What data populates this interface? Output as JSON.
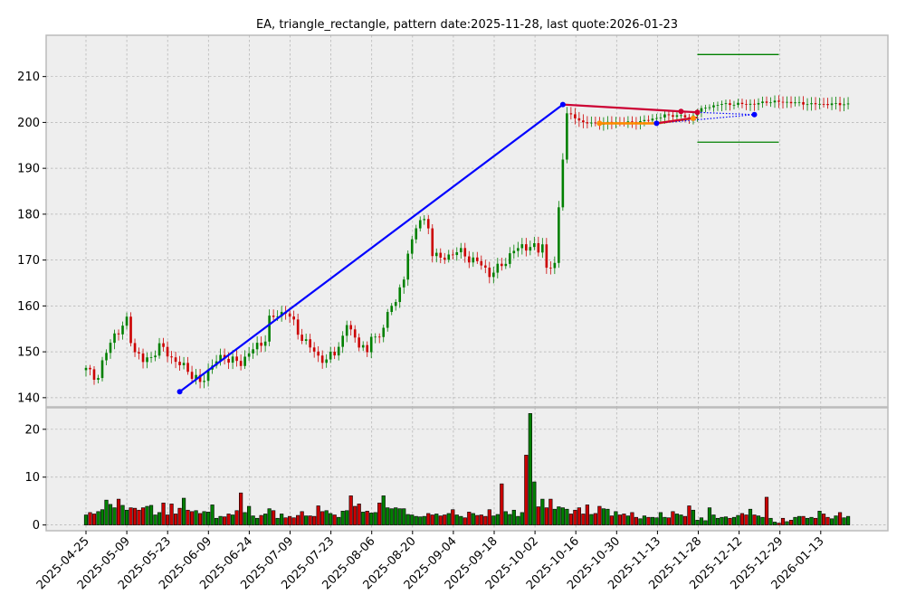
{
  "chart_data": {
    "type": "candlestick",
    "title": "EA, triangle_rectangle, pattern date:2025-11-28, last quote:2026-01-23",
    "xlabel": "",
    "ylabel": "",
    "price_axis": {
      "ylim": [
        138,
        219
      ],
      "ticks": [
        140,
        150,
        160,
        170,
        180,
        190,
        200,
        210
      ]
    },
    "volume_axis": {
      "ylim": [
        -1.2,
        24.5
      ],
      "ticks": [
        0,
        10,
        20
      ],
      "unit": "millions"
    },
    "date_ticks": [
      "2025-04-25",
      "2025-05-09",
      "2025-05-23",
      "2025-06-09",
      "2025-06-24",
      "2025-07-09",
      "2025-07-23",
      "2025-08-06",
      "2025-08-20",
      "2025-09-04",
      "2025-09-18",
      "2025-10-02",
      "2025-10-16",
      "2025-10-30",
      "2025-11-13",
      "2025-11-28",
      "2025-12-12",
      "2025-12-29",
      "2026-01-13"
    ],
    "grid": true,
    "colors": {
      "up": "#008000",
      "down": "#cc0000",
      "background": "#eeeeee",
      "wedge": "#0000ff",
      "resistance": "#cc0033",
      "support": "#ff8c00",
      "target": "#008000"
    },
    "price_anchors": [
      [
        0,
        146
      ],
      [
        3,
        144.5
      ],
      [
        5,
        150
      ],
      [
        7,
        154
      ],
      [
        9,
        155
      ],
      [
        10,
        157
      ],
      [
        11,
        153
      ],
      [
        12,
        150
      ],
      [
        14,
        148
      ],
      [
        16,
        149
      ],
      [
        18,
        151
      ],
      [
        20,
        150
      ],
      [
        22,
        147.5
      ],
      [
        24,
        147
      ],
      [
        26,
        145
      ],
      [
        28,
        143
      ],
      [
        30,
        146
      ],
      [
        32,
        148
      ],
      [
        34,
        149
      ],
      [
        36,
        148
      ],
      [
        38,
        147.5
      ],
      [
        40,
        150
      ],
      [
        42,
        151
      ],
      [
        44,
        153
      ],
      [
        45,
        157
      ],
      [
        47,
        158
      ],
      [
        49,
        159
      ],
      [
        51,
        156
      ],
      [
        53,
        153
      ],
      [
        55,
        151
      ],
      [
        57,
        149
      ],
      [
        59,
        148
      ],
      [
        61,
        150
      ],
      [
        63,
        153
      ],
      [
        64,
        156
      ],
      [
        66,
        153
      ],
      [
        68,
        151
      ],
      [
        69,
        149
      ],
      [
        70,
        154
      ],
      [
        72,
        153
      ],
      [
        74,
        158
      ],
      [
        76,
        162
      ],
      [
        78,
        165
      ],
      [
        79,
        172
      ],
      [
        81,
        177
      ],
      [
        82,
        179
      ],
      [
        84,
        177
      ],
      [
        85,
        172
      ],
      [
        87,
        170
      ],
      [
        89,
        171
      ],
      [
        91,
        172
      ],
      [
        93,
        171
      ],
      [
        95,
        170
      ],
      [
        97,
        169
      ],
      [
        99,
        167
      ],
      [
        101,
        168
      ],
      [
        103,
        170
      ],
      [
        105,
        172
      ],
      [
        107,
        173
      ],
      [
        109,
        173
      ],
      [
        111,
        172
      ],
      [
        112,
        174
      ],
      [
        113,
        168
      ],
      [
        115,
        169
      ],
      [
        117,
        193
      ],
      [
        118,
        202
      ],
      [
        120,
        201
      ],
      [
        122,
        200
      ],
      [
        124,
        199.8
      ],
      [
        126,
        199.8
      ],
      [
        130,
        200
      ],
      [
        134,
        200
      ],
      [
        138,
        200.5
      ],
      [
        142,
        201.5
      ],
      [
        146,
        201.5
      ],
      [
        148,
        200.8
      ],
      [
        150,
        202.5
      ],
      [
        153,
        203.5
      ],
      [
        156,
        204
      ],
      [
        160,
        204
      ],
      [
        164,
        204
      ],
      [
        167,
        204.5
      ],
      [
        171,
        204.5
      ],
      [
        175,
        204.2
      ],
      [
        178,
        204
      ]
    ],
    "volume": [
      2.1,
      2.6,
      2.3,
      2.8,
      3.2,
      5.2,
      4.3,
      3.6,
      5.4,
      4.1,
      3.1,
      3.6,
      3.5,
      3.1,
      3.6,
      3.9,
      4.1,
      2.1,
      2.6,
      4.6,
      2.1,
      4.4,
      2.3,
      3.5,
      5.6,
      3.1,
      2.8,
      3.0,
      2.4,
      2.8,
      2.7,
      4.2,
      1.4,
      1.8,
      1.7,
      2.3,
      2.1,
      3.0,
      6.7,
      2.6,
      3.9,
      1.9,
      1.4,
      2.0,
      2.3,
      3.4,
      3.0,
      1.4,
      2.3,
      1.5,
      1.8,
      1.5,
      2.0,
      2.8,
      1.9,
      1.9,
      1.8,
      4.0,
      2.8,
      3.0,
      2.4,
      2.1,
      1.6,
      2.9,
      3.0,
      6.1,
      3.9,
      4.4,
      2.7,
      2.9,
      2.5,
      2.6,
      4.6,
      6.1,
      3.6,
      3.4,
      3.6,
      3.4,
      3.4,
      2.2,
      2.1,
      1.8,
      1.7,
      1.8,
      2.4,
      2.1,
      2.3,
      1.9,
      2.1,
      2.4,
      3.2,
      2.1,
      1.8,
      1.5,
      2.7,
      2.4,
      2.0,
      2.1,
      1.8,
      3.2,
      1.9,
      2.2,
      8.6,
      2.8,
      2.2,
      3.1,
      1.8,
      2.6,
      14.6,
      23.3,
      9.0,
      3.8,
      5.4,
      3.6,
      5.4,
      3.3,
      3.8,
      3.6,
      3.3,
      2.3,
      3.1,
      3.6,
      2.3,
      4.2,
      2.2,
      2.4,
      3.9,
      3.4,
      3.3,
      1.9,
      2.8,
      2.1,
      2.3,
      1.9,
      2.6,
      1.6,
      1.3,
      1.9,
      1.6,
      1.6,
      1.5,
      2.6,
      1.6,
      1.5,
      2.8,
      2.3,
      2.1,
      1.8,
      4.0,
      3.1,
      1.0,
      1.5,
      0.9,
      3.6,
      2.1,
      1.4,
      1.6,
      1.7,
      1.4,
      1.6,
      2.0,
      2.4,
      2.1,
      3.3,
      2.1,
      1.9,
      1.6,
      5.8,
      1.4,
      0.6,
      0.4,
      1.4,
      0.7,
      1.0,
      1.6,
      1.8,
      1.8,
      1.4,
      1.6,
      1.4,
      2.9,
      2.3,
      1.6,
      1.3,
      1.9,
      2.6,
      1.5,
      1.8
    ],
    "overlays": {
      "wedge_line": [
        [
          23,
          141.3
        ],
        [
          117,
          203.9
        ]
      ],
      "resistance_line": [
        [
          117,
          203.9
        ],
        [
          146,
          202.4
        ],
        [
          150,
          202.2
        ]
      ],
      "resistance_dotted": [
        [
          150,
          202.2
        ],
        [
          164,
          201.7
        ]
      ],
      "support_line": [
        [
          126,
          199.8
        ],
        [
          140,
          199.8
        ],
        [
          149,
          200.9
        ]
      ],
      "support_dotted": [
        [
          140,
          199.8
        ],
        [
          164,
          201.7
        ]
      ],
      "pattern_points": [
        {
          "x": 23,
          "y": 141.3,
          "color": "blue"
        },
        {
          "x": 117,
          "y": 203.9,
          "color": "blue"
        },
        {
          "x": 140,
          "y": 199.8,
          "color": "blue"
        },
        {
          "x": 164,
          "y": 201.7,
          "color": "blue"
        },
        {
          "x": 146,
          "y": 202.4,
          "color": "red"
        },
        {
          "x": 150,
          "y": 202.2,
          "color": "red"
        },
        {
          "x": 126,
          "y": 199.8,
          "color": "orange"
        },
        {
          "x": 149,
          "y": 200.9,
          "color": "orange"
        }
      ],
      "target_upper": {
        "y": 214.8,
        "x_range": [
          150,
          170
        ]
      },
      "target_lower": {
        "y": 195.7,
        "x_range": [
          150,
          170
        ]
      }
    }
  }
}
